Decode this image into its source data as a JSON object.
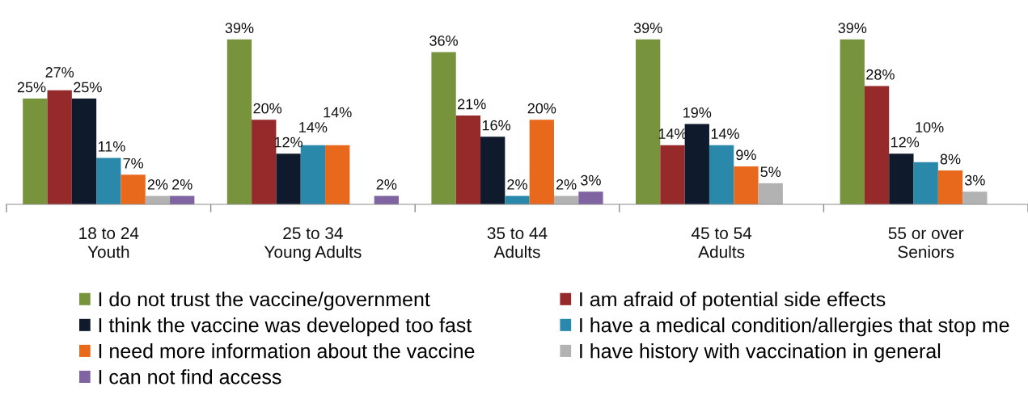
{
  "chart_data": {
    "type": "bar",
    "categories": [
      "18 to 24\nYouth",
      "25 to 34\nYoung Adults",
      "35 to 44\nAdults",
      "45 to 54\nAdults",
      "55 or over\nSeniors"
    ],
    "series": [
      {
        "name": "I do not trust the vaccine/government",
        "color": "#77933c",
        "values": [
          25,
          39,
          36,
          39,
          39
        ],
        "value_labels": [
          "25%",
          "39%",
          "36%",
          "39%",
          "39%"
        ]
      },
      {
        "name": "I am afraid of potential side effects",
        "color": "#962a2a",
        "values": [
          27,
          20,
          21,
          14,
          28
        ],
        "value_labels": [
          "27%",
          "20%",
          "21%",
          "14%",
          "28%"
        ]
      },
      {
        "name": "I think the vaccine was developed too fast",
        "color": "#0f1b2d",
        "values": [
          25,
          12,
          16,
          19,
          12
        ],
        "value_labels": [
          "25%",
          "12%",
          "16%",
          "19%",
          "12%"
        ]
      },
      {
        "name": "I have a medical condition/allergies that stop me",
        "color": "#2a88aa",
        "values": [
          11,
          14,
          2,
          14,
          10
        ],
        "value_labels": [
          "11%",
          "14%",
          "2%",
          "14%",
          "10%"
        ]
      },
      {
        "name": "I need more information about the vaccine",
        "color": "#e8691c",
        "values": [
          7,
          14,
          20,
          9,
          8
        ],
        "value_labels": [
          "7%",
          "14%",
          "20%",
          "9%",
          "8%"
        ]
      },
      {
        "name": "I have history with vaccination in general",
        "color": "#b2b2b2",
        "values": [
          2,
          null,
          2,
          5,
          3
        ],
        "value_labels": [
          "2%",
          null,
          "2%",
          "5%",
          "3%"
        ]
      },
      {
        "name": "I can not find access",
        "color": "#8064a2",
        "values": [
          2,
          2,
          3,
          null,
          null
        ],
        "value_labels": [
          "2%",
          "2%",
          "3%",
          null,
          null
        ]
      }
    ],
    "legend": "bottom",
    "tick_labels": "x"
  }
}
